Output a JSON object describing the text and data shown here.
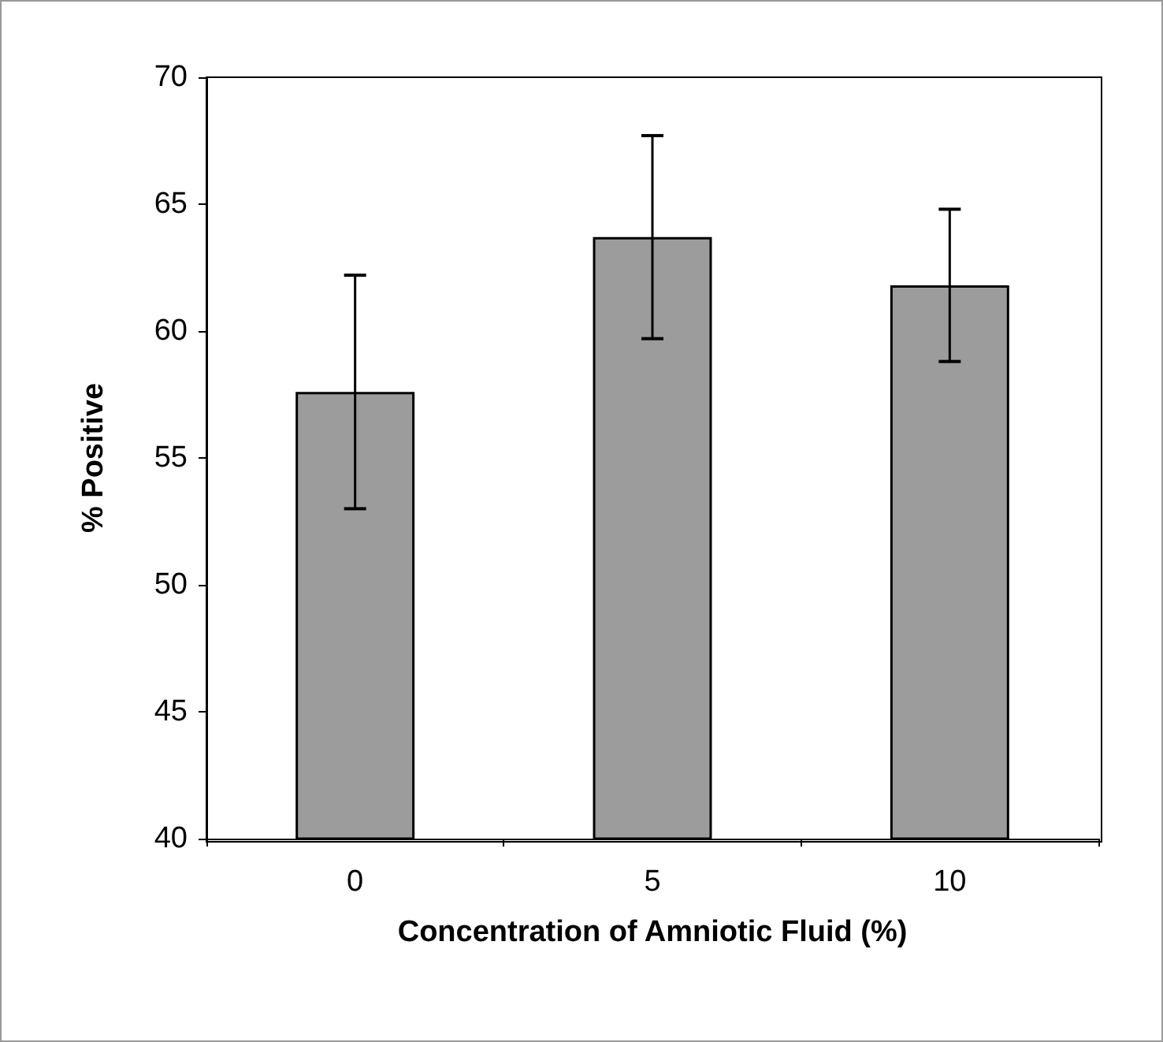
{
  "chart_data": {
    "type": "bar",
    "xlabel": "Concentration of Amniotic Fluid (%)",
    "ylabel": "% Positive",
    "categories": [
      "0",
      "5",
      "10"
    ],
    "values": [
      57.6,
      63.7,
      61.8
    ],
    "errors": [
      4.6,
      4.0,
      3.0
    ],
    "color": "#9c9c9c",
    "ylim": [
      40,
      70
    ],
    "yticks": [
      40,
      45,
      50,
      55,
      60,
      65,
      70
    ],
    "grid": false
  }
}
